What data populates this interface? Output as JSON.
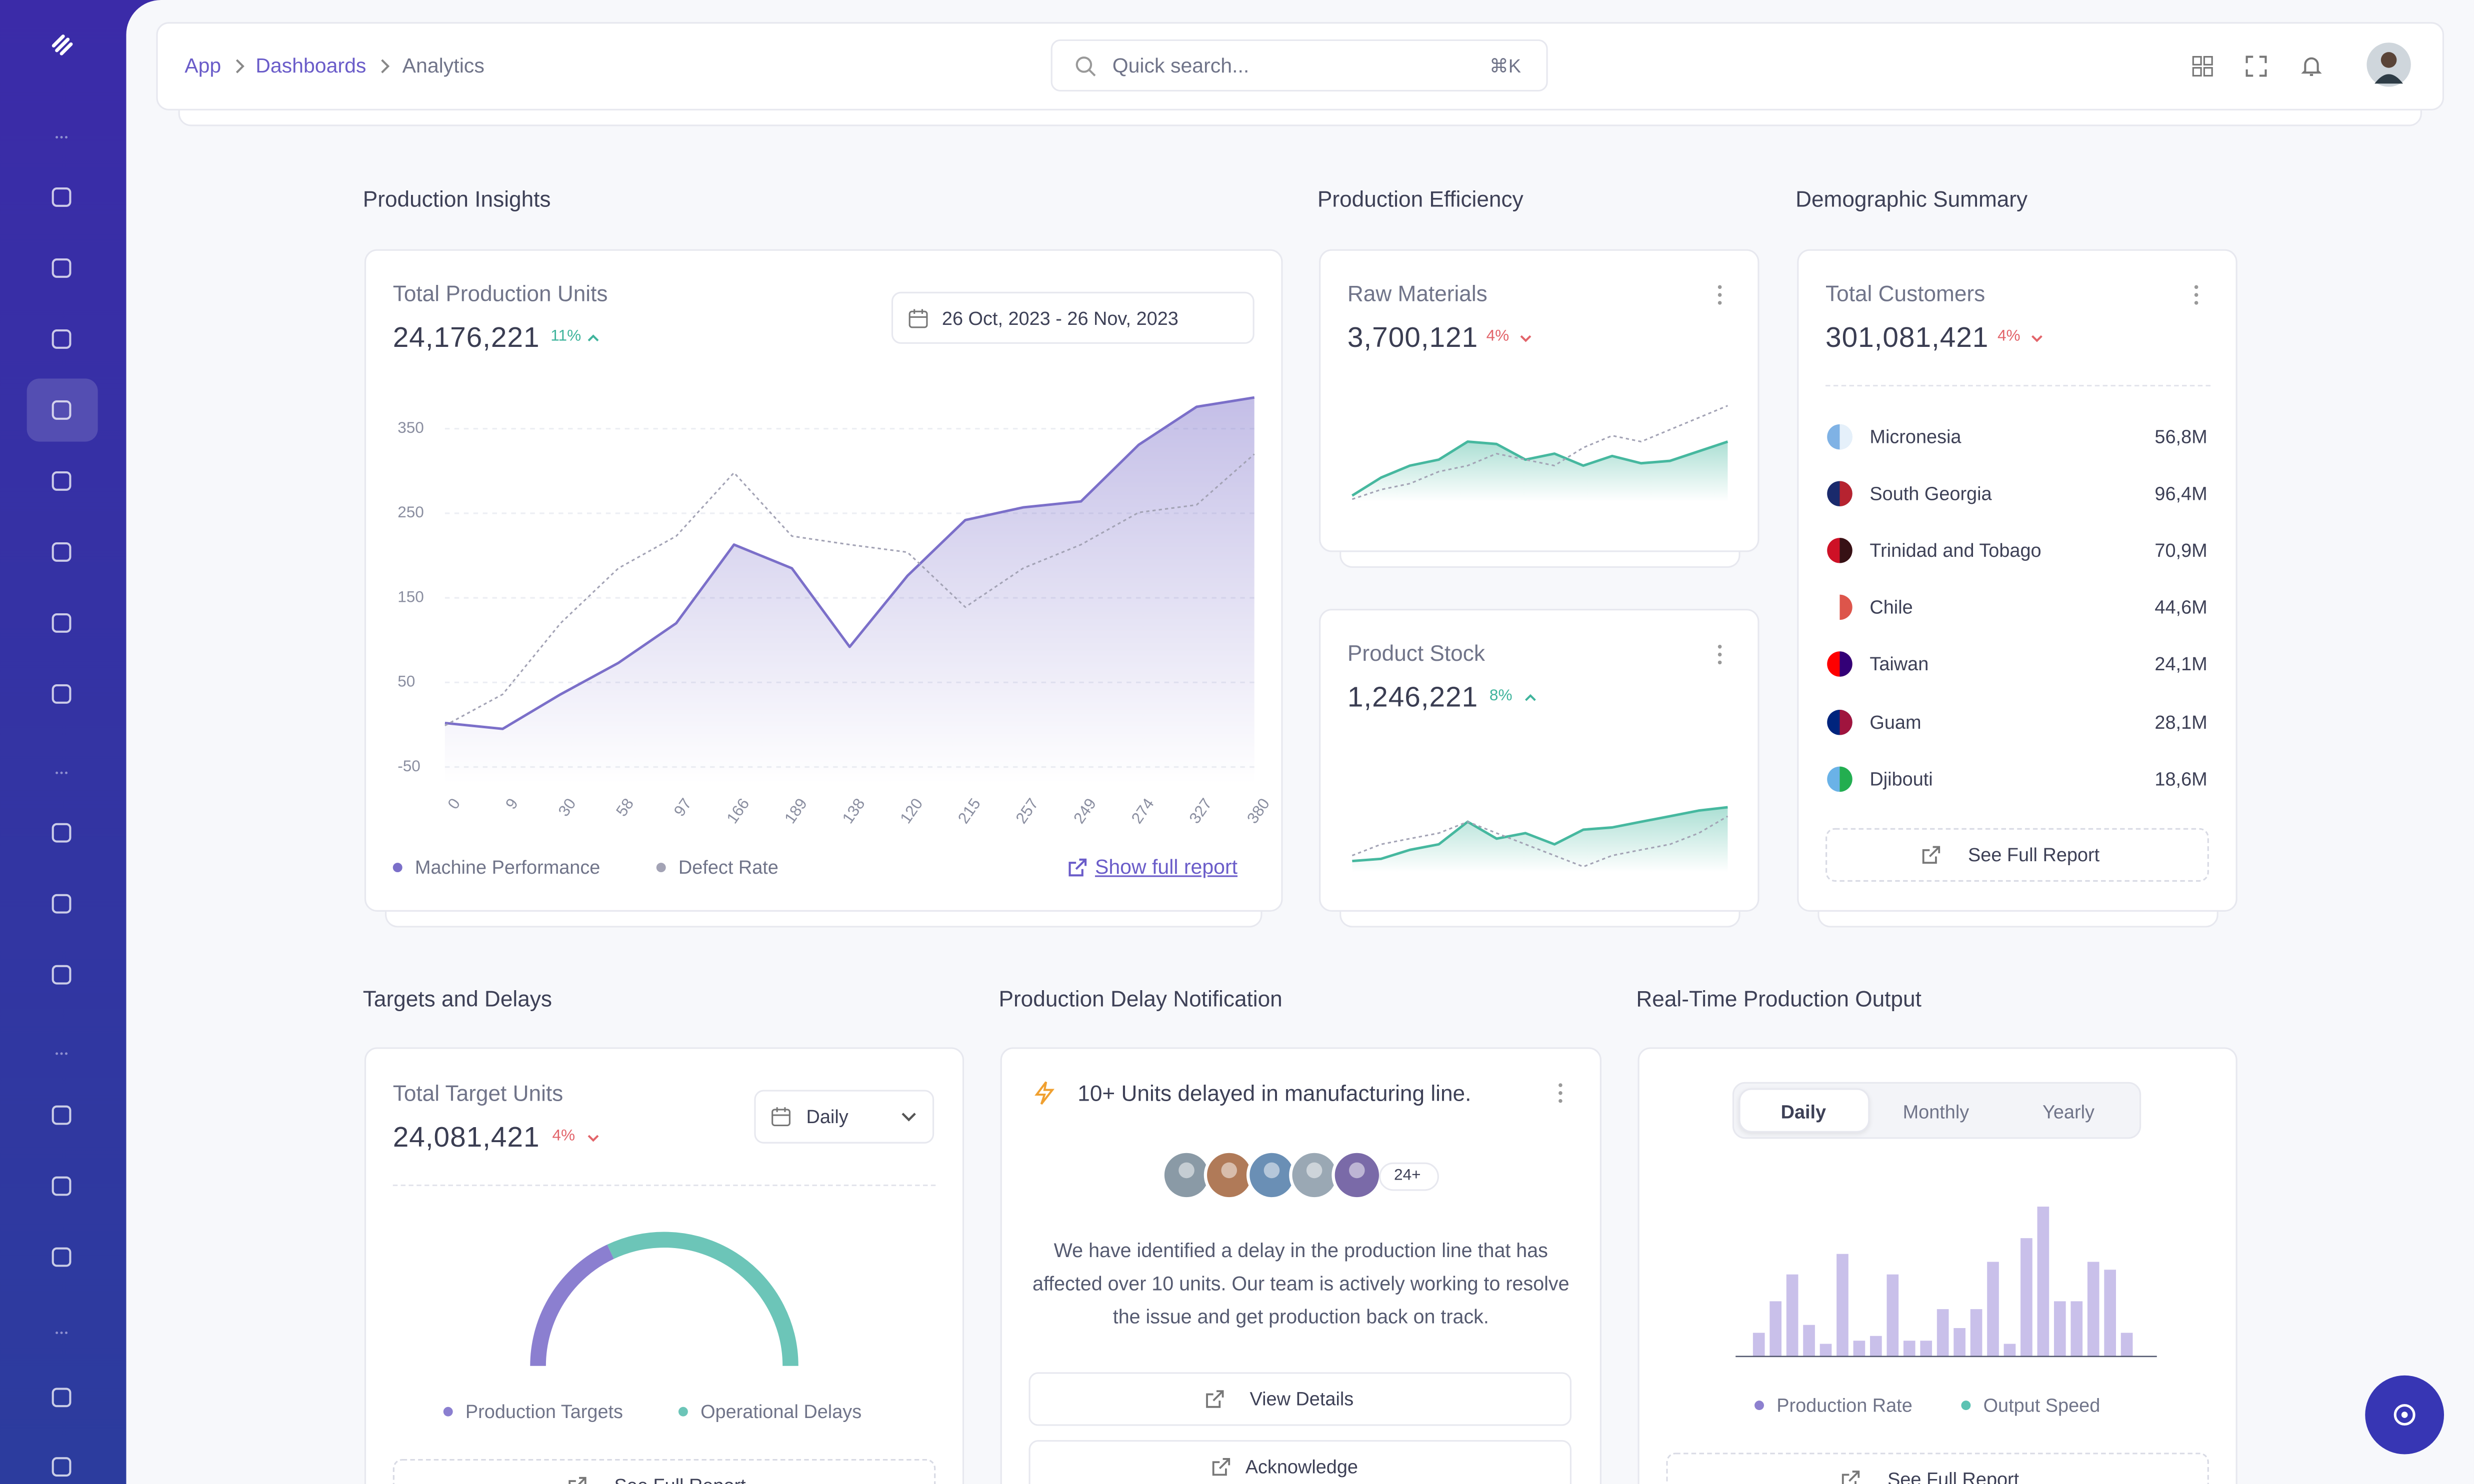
{
  "breadcrumb": [
    "App",
    "Dashboards",
    "Analytics"
  ],
  "search": {
    "placeholder": "Quick search...",
    "shortcut": "⌘K"
  },
  "production_insights": {
    "section_title": "Production Insights",
    "title": "Total Production Units",
    "total": "24,176,221",
    "change": "11%",
    "trend": "up",
    "date_range": "26 Oct, 2023 - 26 Nov, 2023",
    "link": "Show full report"
  },
  "production_efficiency": {
    "section_title": "Production Efficiency",
    "raw_materials": {
      "title": "Raw Materials",
      "total": "3,700,121",
      "change": "4%",
      "trend": "down"
    },
    "product_stock": {
      "title": "Product Stock",
      "total": "1,246,221",
      "change": "8%",
      "trend": "up"
    }
  },
  "demographic_summary": {
    "section_title": "Demographic Summary",
    "title": "Total Customers",
    "total": "301,081,421",
    "change": "4%",
    "trend": "down",
    "rows": [
      [
        "Micronesia",
        "56,8M"
      ],
      [
        "South Georgia",
        "96,4M"
      ],
      [
        "Trinidad and Tobago",
        "70,9M"
      ],
      [
        "Chile",
        "44,6M"
      ],
      [
        "Taiwan",
        "24,1M"
      ],
      [
        "Guam",
        "28,1M"
      ],
      [
        "Djibouti",
        "18,6M"
      ]
    ],
    "button": "See Full Report"
  },
  "targets_and_delays": {
    "section_title": "Targets and Delays",
    "title": "Total Target Units",
    "total": "24,081,421",
    "change": "4%",
    "trend": "down",
    "period": "Daily",
    "button": "See Full Report"
  },
  "delay_notification": {
    "section_title": "Production Delay Notification",
    "headline": "10+ Units delayed in manufacturing line.",
    "avatar_more": "24+",
    "message": "We have identified a delay in the production line that has affected over 10 units. Our team is actively working to resolve the issue and get production back on track.",
    "buttons": [
      "View Details",
      "Acknowledge"
    ]
  },
  "realtime_output": {
    "section_title": "Real-Time Production Output",
    "tabs": [
      "Daily",
      "Monthly",
      "Yearly"
    ],
    "button": "See Full Report"
  },
  "chart_data": [
    {
      "type": "line",
      "categories": [
        "0",
        "9",
        "30",
        "58",
        "97",
        "166",
        "189",
        "138",
        "120",
        "215",
        "257",
        "249",
        "274",
        "327",
        "380"
      ],
      "ylim": [
        -70,
        400
      ],
      "yticks": [
        -50,
        50,
        150,
        250,
        350
      ],
      "grid": true,
      "series": [
        {
          "name": "Machine Performance",
          "color": "#7b6fc9",
          "style": "solid",
          "area": true,
          "values": [
            2,
            -5,
            36,
            73,
            120,
            213,
            185,
            92,
            176,
            242,
            257,
            264,
            331,
            376,
            387
          ]
        },
        {
          "name": "Defect Rate",
          "color": "#a3a3b5",
          "style": "dashed",
          "area": false,
          "values": [
            -1,
            36,
            120,
            185,
            223,
            298,
            223,
            213,
            204,
            139,
            185,
            213,
            251,
            260,
            320
          ]
        }
      ]
    },
    {
      "type": "line",
      "ylim": [
        0,
        100
      ],
      "series": [
        {
          "color": "#46b89f",
          "style": "solid",
          "area": true,
          "values": [
            5,
            20,
            30,
            35,
            50,
            48,
            35,
            40,
            30,
            38,
            32,
            34,
            42,
            50
          ]
        },
        {
          "color": "#a3a3b5",
          "style": "dashed",
          "area": false,
          "values": [
            2,
            10,
            15,
            25,
            30,
            40,
            35,
            30,
            45,
            55,
            50,
            60,
            70,
            80
          ]
        }
      ]
    },
    {
      "type": "line",
      "ylim": [
        0,
        100
      ],
      "series": [
        {
          "color": "#46b89f",
          "style": "solid",
          "area": true,
          "values": [
            10,
            12,
            20,
            25,
            45,
            30,
            35,
            25,
            38,
            40,
            45,
            50,
            55,
            58
          ]
        },
        {
          "color": "#a3a3b5",
          "style": "dashed",
          "area": false,
          "values": [
            15,
            25,
            30,
            35,
            45,
            35,
            25,
            15,
            5,
            15,
            20,
            25,
            35,
            50
          ]
        }
      ]
    },
    {
      "type": "gauge",
      "categories": [
        "Production Targets",
        "Operational Delays"
      ],
      "values": [
        36,
        64
      ],
      "colors": [
        "#8b7fd0",
        "#6cc5b8"
      ]
    },
    {
      "type": "bar",
      "ylim": [
        0,
        100
      ],
      "color": "#c9c0ea",
      "values": [
        15,
        35,
        52,
        20,
        8,
        65,
        10,
        13,
        52,
        10,
        10,
        30,
        18,
        30,
        60,
        8,
        75,
        95,
        35,
        35,
        60,
        55,
        15
      ],
      "legend": [
        {
          "name": "Production Rate",
          "color": "#8d80cf"
        },
        {
          "name": "Output Speed",
          "color": "#5cc3b3"
        }
      ]
    }
  ]
}
